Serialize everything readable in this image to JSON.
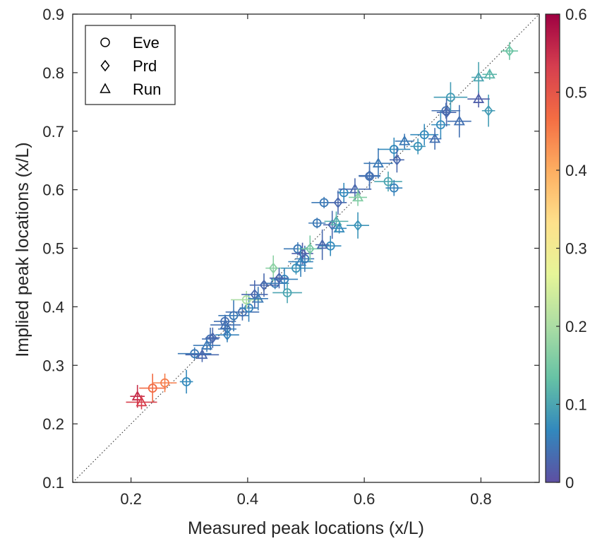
{
  "chart_data": {
    "type": "scatter",
    "xlabel": "Measured peak locations (x/L)",
    "ylabel": "Implied peak locations (x/L)",
    "xlim": [
      0.1,
      0.9
    ],
    "ylim": [
      0.1,
      0.9
    ],
    "xticks": [
      "0.2",
      "0.4",
      "0.6",
      "0.8"
    ],
    "yticks": [
      "0.1",
      "0.2",
      "0.3",
      "0.4",
      "0.5",
      "0.6",
      "0.7",
      "0.8",
      "0.9"
    ],
    "reference_line": "y = x (dotted)",
    "legend": {
      "placement": "top-left",
      "entries": [
        {
          "label": "Eve",
          "marker": "circle"
        },
        {
          "label": "Prd",
          "marker": "diamond"
        },
        {
          "label": "Run",
          "marker": "triangle"
        }
      ]
    },
    "colorbar": {
      "min": 0,
      "max": 0.6,
      "ticks": [
        "0",
        "0.1",
        "0.2",
        "0.3",
        "0.4",
        "0.5",
        "0.6"
      ],
      "colormap": "spectral",
      "colors": [
        "#5e4fa2",
        "#3288bd",
        "#66c2a5",
        "#abdda4",
        "#e6f598",
        "#fee08b",
        "#fdae61",
        "#f46d43",
        "#d53e4f",
        "#9e0142"
      ]
    },
    "series": [
      {
        "name": "Eve",
        "marker": "circle",
        "points": [
          {
            "x": 0.237,
            "y": 0.261,
            "c": 0.47
          },
          {
            "x": 0.258,
            "y": 0.27,
            "c": 0.45
          },
          {
            "x": 0.295,
            "y": 0.272,
            "c": 0.07
          },
          {
            "x": 0.309,
            "y": 0.32,
            "c": 0.05
          },
          {
            "x": 0.336,
            "y": 0.345,
            "c": 0.04
          },
          {
            "x": 0.361,
            "y": 0.375,
            "c": 0.04
          },
          {
            "x": 0.376,
            "y": 0.385,
            "c": 0.05
          },
          {
            "x": 0.391,
            "y": 0.391,
            "c": 0.04
          },
          {
            "x": 0.402,
            "y": 0.398,
            "c": 0.06
          },
          {
            "x": 0.398,
            "y": 0.412,
            "c": 0.2
          },
          {
            "x": 0.447,
            "y": 0.44,
            "c": 0.05
          },
          {
            "x": 0.463,
            "y": 0.447,
            "c": 0.06
          },
          {
            "x": 0.468,
            "y": 0.424,
            "c": 0.1
          },
          {
            "x": 0.483,
            "y": 0.466,
            "c": 0.08
          },
          {
            "x": 0.486,
            "y": 0.499,
            "c": 0.05
          },
          {
            "x": 0.498,
            "y": 0.482,
            "c": 0.05
          },
          {
            "x": 0.519,
            "y": 0.543,
            "c": 0.05
          },
          {
            "x": 0.531,
            "y": 0.578,
            "c": 0.05
          },
          {
            "x": 0.542,
            "y": 0.504,
            "c": 0.07
          },
          {
            "x": 0.565,
            "y": 0.595,
            "c": 0.07
          },
          {
            "x": 0.609,
            "y": 0.623,
            "c": 0.04
          },
          {
            "x": 0.641,
            "y": 0.614,
            "c": 0.1
          },
          {
            "x": 0.651,
            "y": 0.603,
            "c": 0.06
          },
          {
            "x": 0.651,
            "y": 0.669,
            "c": 0.07
          },
          {
            "x": 0.692,
            "y": 0.674,
            "c": 0.08
          },
          {
            "x": 0.703,
            "y": 0.694,
            "c": 0.07
          },
          {
            "x": 0.731,
            "y": 0.711,
            "c": 0.07
          },
          {
            "x": 0.74,
            "y": 0.735,
            "c": 0.04
          },
          {
            "x": 0.748,
            "y": 0.758,
            "c": 0.09
          }
        ]
      },
      {
        "name": "Prd",
        "marker": "diamond",
        "points": [
          {
            "x": 0.34,
            "y": 0.347,
            "c": 0.03
          },
          {
            "x": 0.365,
            "y": 0.362,
            "c": 0.05
          },
          {
            "x": 0.365,
            "y": 0.352,
            "c": 0.06
          },
          {
            "x": 0.412,
            "y": 0.421,
            "c": 0.03
          },
          {
            "x": 0.428,
            "y": 0.437,
            "c": 0.03
          },
          {
            "x": 0.444,
            "y": 0.466,
            "c": 0.17
          },
          {
            "x": 0.454,
            "y": 0.449,
            "c": 0.03
          },
          {
            "x": 0.494,
            "y": 0.491,
            "c": 0.02
          },
          {
            "x": 0.507,
            "y": 0.499,
            "c": 0.15
          },
          {
            "x": 0.545,
            "y": 0.54,
            "c": 0.03
          },
          {
            "x": 0.555,
            "y": 0.578,
            "c": 0.03
          },
          {
            "x": 0.589,
            "y": 0.539,
            "c": 0.08
          },
          {
            "x": 0.609,
            "y": 0.624,
            "c": 0.04
          },
          {
            "x": 0.656,
            "y": 0.651,
            "c": 0.03
          },
          {
            "x": 0.741,
            "y": 0.732,
            "c": 0.03
          },
          {
            "x": 0.813,
            "y": 0.735,
            "c": 0.09
          },
          {
            "x": 0.849,
            "y": 0.837,
            "c": 0.14
          }
        ]
      },
      {
        "name": "Run",
        "marker": "triangle",
        "points": [
          {
            "x": 0.211,
            "y": 0.247,
            "c": 0.55
          },
          {
            "x": 0.218,
            "y": 0.237,
            "c": 0.53
          },
          {
            "x": 0.322,
            "y": 0.318,
            "c": 0.03
          },
          {
            "x": 0.33,
            "y": 0.334,
            "c": 0.05
          },
          {
            "x": 0.362,
            "y": 0.369,
            "c": 0.04
          },
          {
            "x": 0.418,
            "y": 0.414,
            "c": 0.05
          },
          {
            "x": 0.491,
            "y": 0.477,
            "c": 0.06
          },
          {
            "x": 0.528,
            "y": 0.506,
            "c": 0.03
          },
          {
            "x": 0.552,
            "y": 0.546,
            "c": 0.11
          },
          {
            "x": 0.557,
            "y": 0.534,
            "c": 0.07
          },
          {
            "x": 0.584,
            "y": 0.601,
            "c": 0.03
          },
          {
            "x": 0.589,
            "y": 0.587,
            "c": 0.16
          },
          {
            "x": 0.624,
            "y": 0.645,
            "c": 0.05
          },
          {
            "x": 0.669,
            "y": 0.683,
            "c": 0.05
          },
          {
            "x": 0.721,
            "y": 0.687,
            "c": 0.04
          },
          {
            "x": 0.763,
            "y": 0.717,
            "c": 0.04
          },
          {
            "x": 0.796,
            "y": 0.755,
            "c": 0.02
          },
          {
            "x": 0.796,
            "y": 0.792,
            "c": 0.1
          },
          {
            "x": 0.815,
            "y": 0.797,
            "c": 0.12
          }
        ]
      }
    ]
  }
}
